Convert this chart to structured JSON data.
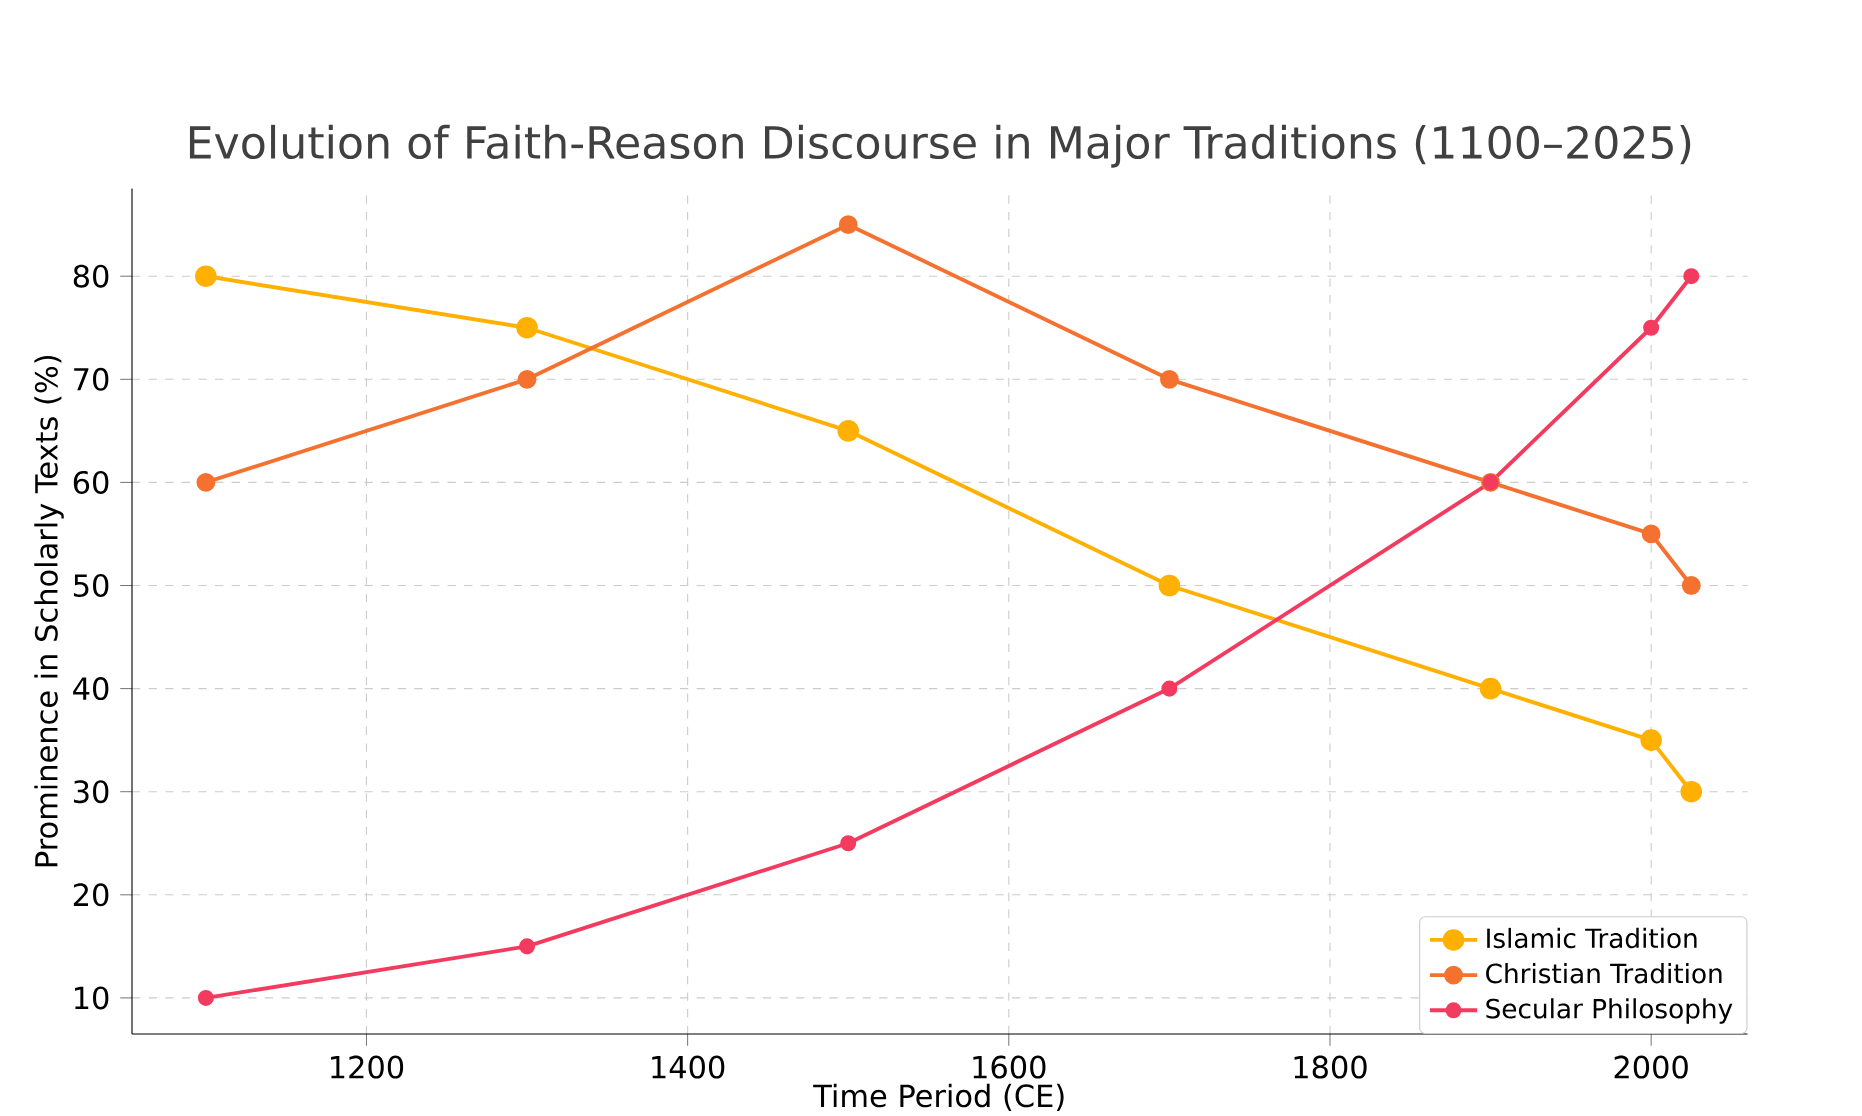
{
  "chart_data": {
    "type": "line",
    "title": "Evolution of Faith-Reason Discourse in Major Traditions (1100–2025)",
    "xlabel": "Time Period (CE)",
    "ylabel": "Prominence in Scholarly Texts (%)",
    "x": [
      1100,
      1300,
      1500,
      1700,
      1900,
      2000,
      2025
    ],
    "series": [
      {
        "name": "Islamic Tradition",
        "color": "#ffb000",
        "values": [
          80,
          75,
          65,
          50,
          40,
          35,
          30
        ]
      },
      {
        "name": "Christian Tradition",
        "color": "#f4712f",
        "values": [
          60,
          70,
          85,
          70,
          60,
          55,
          50
        ]
      },
      {
        "name": "Secular Philosophy",
        "color": "#f23b5e",
        "values": [
          10,
          15,
          25,
          40,
          60,
          75,
          80
        ]
      }
    ],
    "xlim": [
      1054,
      2060
    ],
    "ylim": [
      6.5,
      88.5
    ],
    "xticks": [
      1200,
      1400,
      1600,
      1800,
      2000
    ],
    "yticks": [
      10,
      20,
      30,
      40,
      50,
      60,
      70,
      80
    ],
    "grid": true,
    "legend": "bottom right",
    "marker": "circle",
    "line_style": "solid"
  }
}
